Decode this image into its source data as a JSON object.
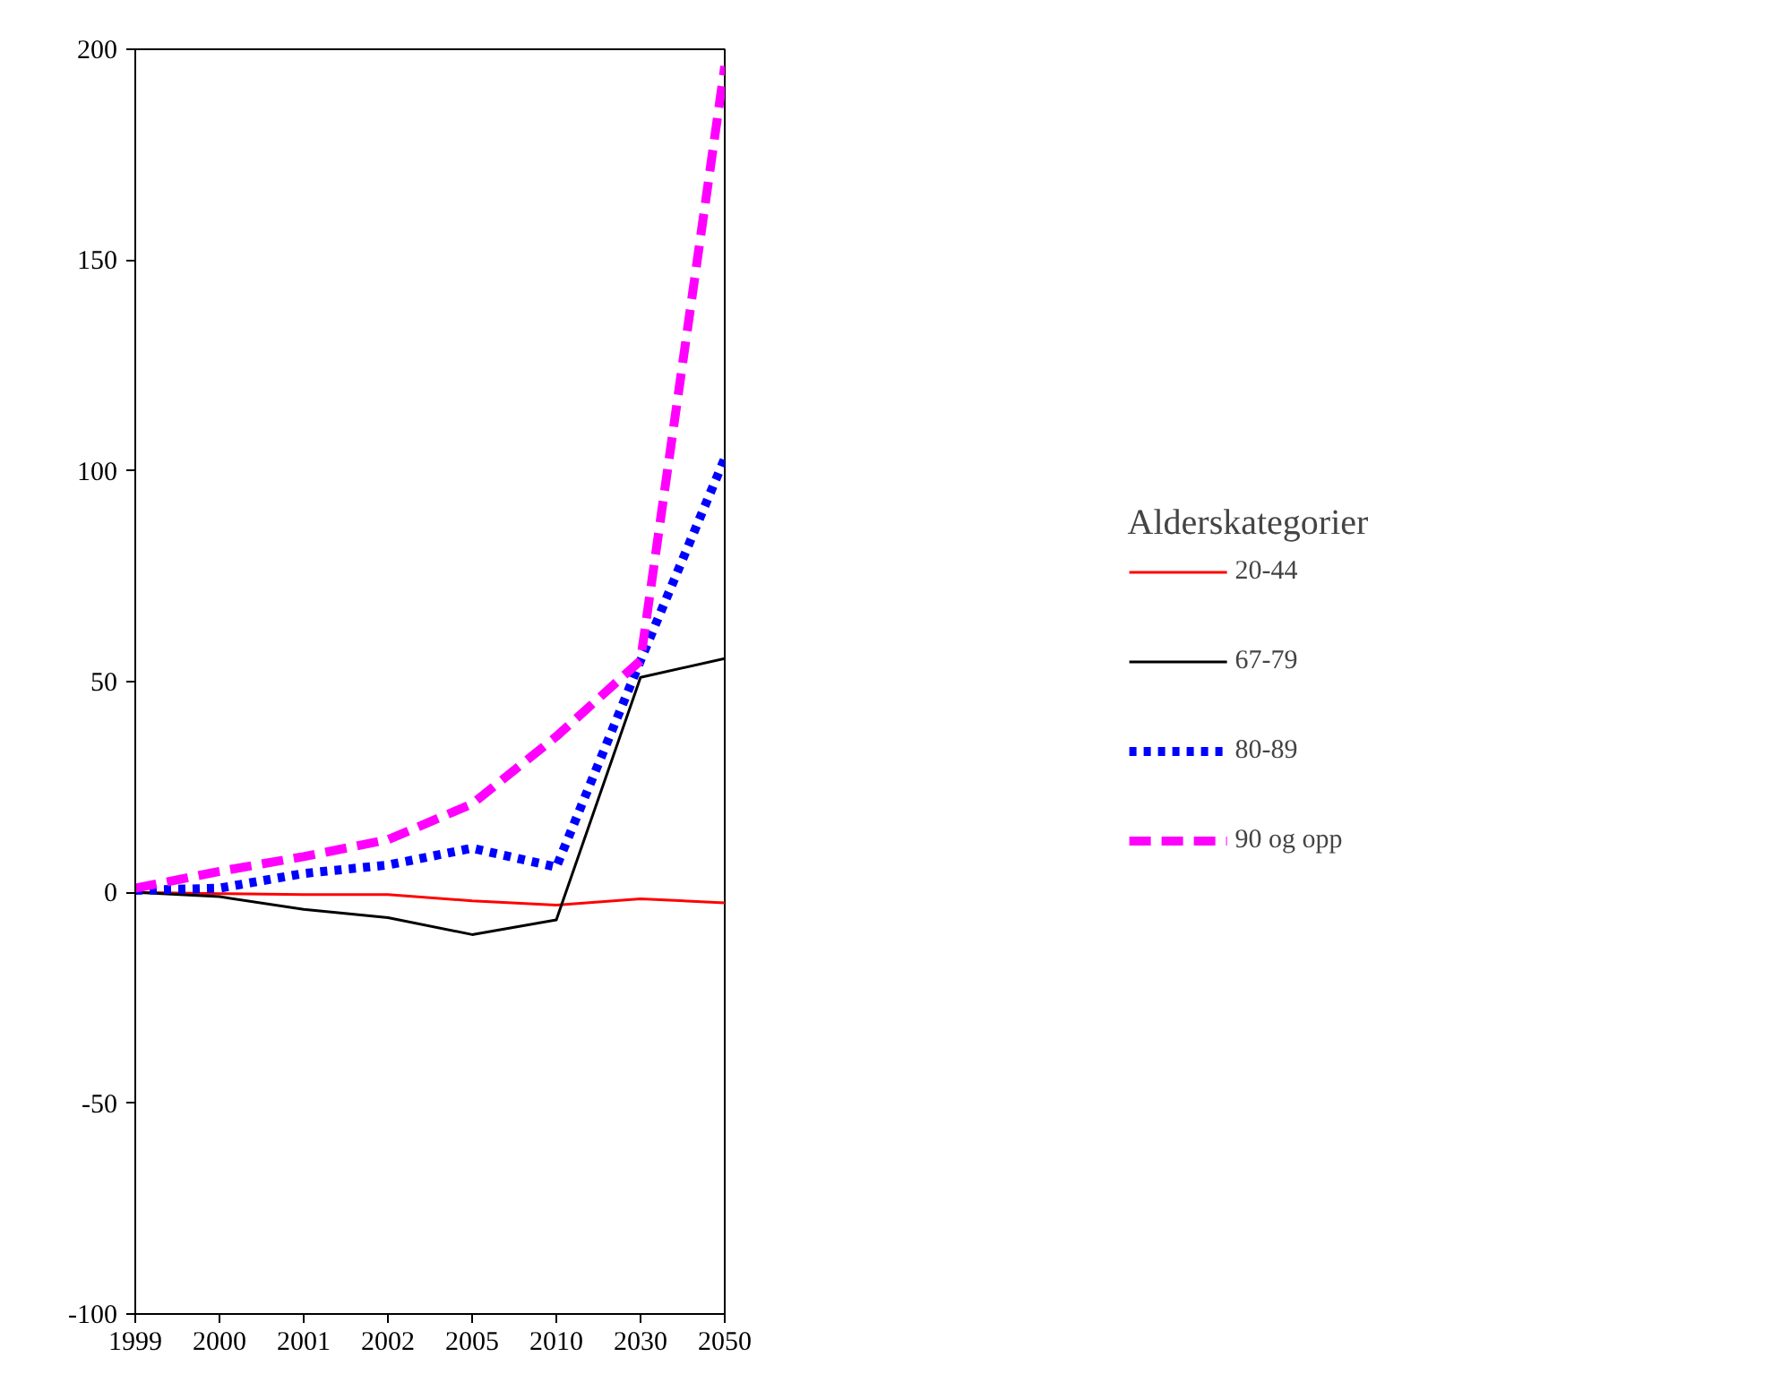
{
  "chart_data": {
    "type": "line",
    "categories": [
      "1999",
      "2000",
      "2001",
      "2002",
      "2005",
      "2010",
      "2030",
      "2050"
    ],
    "ylim": [
      -100,
      200
    ],
    "yticks": [
      -100,
      -50,
      0,
      50,
      100,
      150,
      200
    ],
    "grid": false,
    "legend": "right",
    "legend_title": "Alderskategorier",
    "marker": "none",
    "series": [
      {
        "name": "20-44",
        "color": "#ff0000",
        "line_style": "solid",
        "values": [
          0,
          -0.3,
          -0.5,
          -0.5,
          -2,
          -3,
          -1.5,
          -2.5
        ]
      },
      {
        "name": "67-79",
        "color": "#000000",
        "line_style": "solid",
        "values": [
          0,
          -1,
          -4,
          -6,
          -10,
          -6.5,
          51,
          55.5
        ]
      },
      {
        "name": "80-89",
        "color": "#0000ff",
        "line_style": "dotted",
        "values": [
          0.5,
          1,
          4.5,
          6.5,
          10.5,
          6,
          55,
          103
        ]
      },
      {
        "name": "90 og opp",
        "color": "#ff00ff",
        "line_style": "dashed",
        "values": [
          1,
          5,
          8.5,
          12.5,
          21,
          37,
          55,
          196
        ]
      }
    ]
  }
}
